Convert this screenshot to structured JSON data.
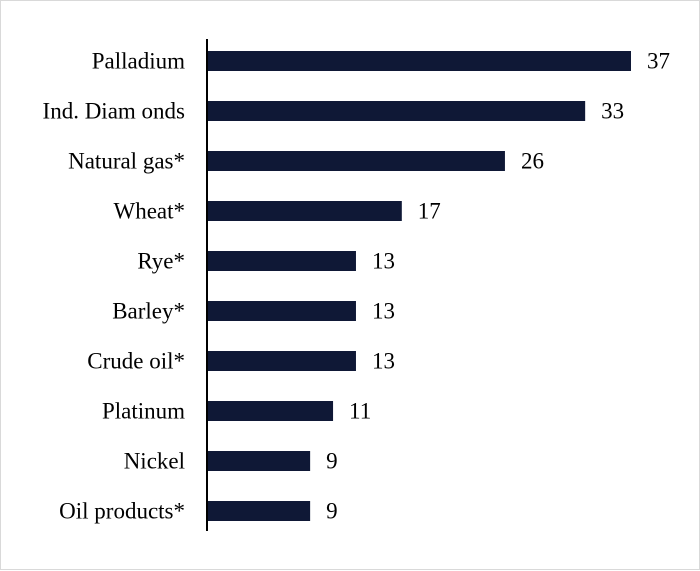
{
  "chart_data": {
    "type": "bar",
    "orientation": "horizontal",
    "title": "",
    "xlabel": "",
    "ylabel": "",
    "categories": [
      "Palladium",
      "Ind. Diam onds",
      "Natural gas*",
      "Wheat*",
      "Rye*",
      "Barley*",
      "Crude oil*",
      "Platinum",
      "Nickel",
      "Oil products*"
    ],
    "values": [
      37,
      33,
      26,
      17,
      13,
      13,
      13,
      11,
      9,
      9
    ],
    "value_labels": [
      "37",
      "33",
      "26",
      "17",
      "13",
      "13",
      "13",
      "11",
      "9",
      "9"
    ],
    "xlim": [
      0,
      37
    ],
    "grid": false,
    "legend": "none",
    "bar_color": "#0f1836",
    "axis_color": "#000000"
  }
}
